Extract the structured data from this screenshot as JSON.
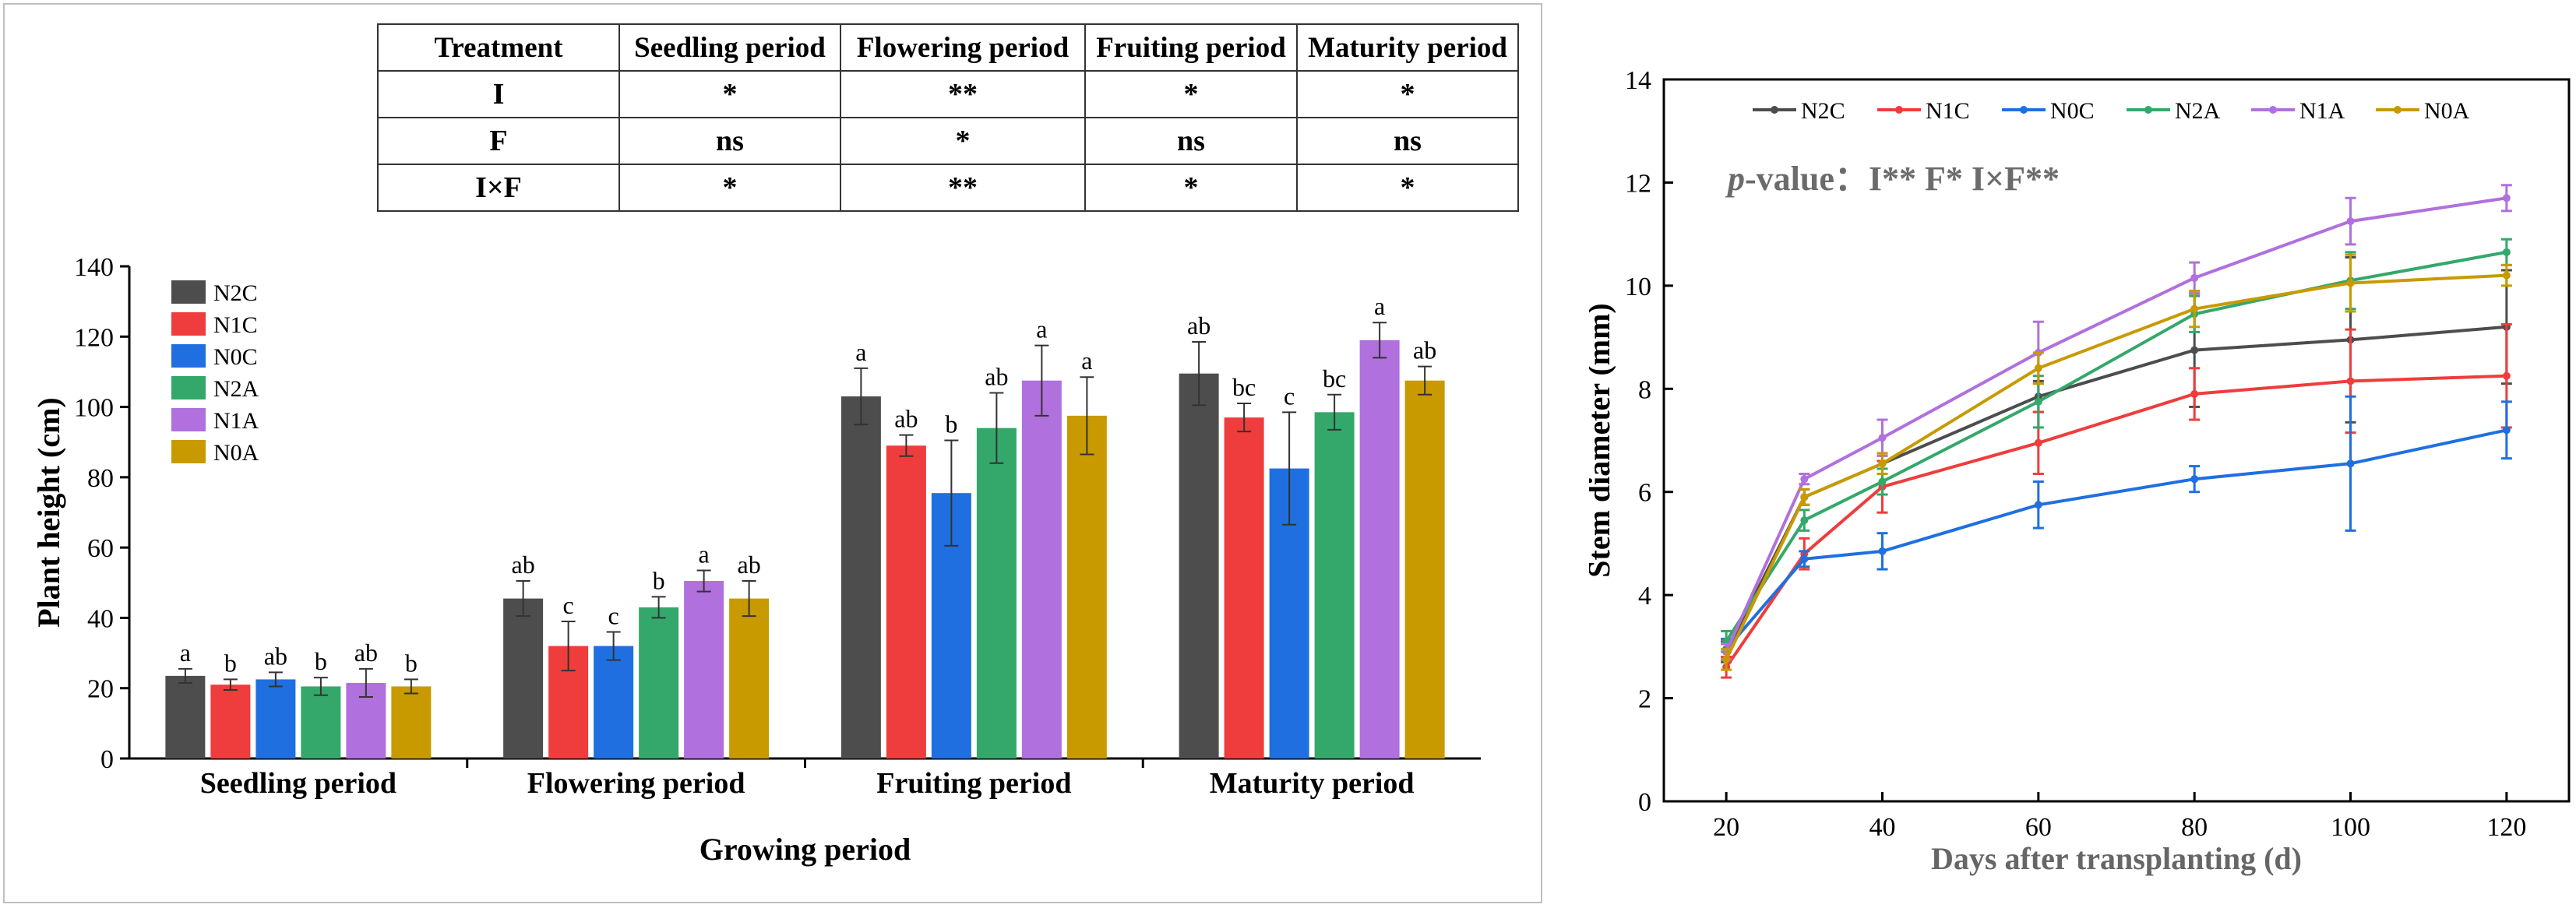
{
  "colors": {
    "N2C": "#4d4d4d",
    "N1C": "#ef3c3c",
    "N0C": "#1f6fe0",
    "N2A": "#33a86a",
    "N1A": "#b070dd",
    "N0A": "#c89a00"
  },
  "table": {
    "headers": [
      "Treatment",
      "Seedling period",
      "Flowering period",
      "Fruiting period",
      "Maturity period"
    ],
    "rows": [
      {
        "label": "I",
        "cells": [
          "*",
          "**",
          "*",
          "*"
        ]
      },
      {
        "label": "F",
        "cells": [
          "ns",
          "*",
          "ns",
          "ns"
        ]
      },
      {
        "label": "I×F",
        "cells": [
          "*",
          "**",
          "*",
          "*"
        ]
      }
    ]
  },
  "chart_data": [
    {
      "type": "bar",
      "title": "",
      "xlabel": "Growing period",
      "ylabel": "Plant height (cm)",
      "ylim": [
        0,
        140
      ],
      "yticks": [
        "0",
        "20",
        "40",
        "60",
        "80",
        "100",
        "120",
        "140"
      ],
      "legend_position": "top-left",
      "categories": [
        "Seedling period",
        "Flowering period",
        "Fruiting period",
        "Maturity period"
      ],
      "series": [
        {
          "name": "N2C",
          "values": [
            23.5,
            45.5,
            103,
            109.5
          ],
          "errors": [
            2,
            5,
            8,
            9
          ],
          "letters": [
            "a",
            "ab",
            "a",
            "ab"
          ]
        },
        {
          "name": "N1C",
          "values": [
            21,
            32,
            89,
            97
          ],
          "errors": [
            1.5,
            7,
            3,
            4
          ],
          "letters": [
            "b",
            "c",
            "ab",
            "bc"
          ]
        },
        {
          "name": "N0C",
          "values": [
            22.5,
            32,
            75.5,
            82.5
          ],
          "errors": [
            2,
            4,
            15,
            16
          ],
          "letters": [
            "ab",
            "c",
            "b",
            "c"
          ]
        },
        {
          "name": "N2A",
          "values": [
            20.5,
            43,
            94,
            98.5
          ],
          "errors": [
            2.5,
            3,
            10,
            5
          ],
          "letters": [
            "b",
            "b",
            "ab",
            "bc"
          ]
        },
        {
          "name": "N1A",
          "values": [
            21.5,
            50.5,
            107.5,
            119
          ],
          "errors": [
            4,
            3,
            10,
            5
          ],
          "letters": [
            "ab",
            "a",
            "a",
            "a"
          ]
        },
        {
          "name": "N0A",
          "values": [
            20.5,
            45.5,
            97.5,
            107.5
          ],
          "errors": [
            2,
            5,
            11,
            4
          ],
          "letters": [
            "b",
            "ab",
            "a",
            "ab"
          ]
        }
      ]
    },
    {
      "type": "line",
      "title": "",
      "xlabel": "Days after transplanting (d)",
      "ylabel": "Stem diameter (mm)",
      "xlim": [
        12,
        128
      ],
      "ylim": [
        0,
        14
      ],
      "xticks": [
        "20",
        "40",
        "60",
        "80",
        "100",
        "120"
      ],
      "yticks": [
        "0",
        "2",
        "4",
        "6",
        "8",
        "10",
        "12",
        "14"
      ],
      "annotation_prefix": "p",
      "annotation_text": "-value：I**  F*  I×F**",
      "legend_position": "top",
      "x": [
        20,
        30,
        40,
        60,
        80,
        100,
        120
      ],
      "series": [
        {
          "name": "N2C",
          "values": [
            2.9,
            5.9,
            6.55,
            7.85,
            8.75,
            8.95,
            9.2
          ],
          "errors": [
            0.2,
            0.15,
            0.2,
            0.3,
            1.1,
            1.6,
            1.1
          ]
        },
        {
          "name": "N1C",
          "values": [
            2.6,
            4.8,
            6.1,
            6.95,
            7.9,
            8.15,
            8.25
          ],
          "errors": [
            0.2,
            0.3,
            0.5,
            0.6,
            0.5,
            1.0,
            1.0
          ]
        },
        {
          "name": "N0C",
          "values": [
            2.95,
            4.7,
            4.85,
            5.75,
            6.25,
            6.55,
            7.2
          ],
          "errors": [
            0.2,
            0.15,
            0.35,
            0.45,
            0.25,
            1.3,
            0.55
          ]
        },
        {
          "name": "N2A",
          "values": [
            3.1,
            5.45,
            6.2,
            7.75,
            9.45,
            10.1,
            10.65
          ],
          "errors": [
            0.2,
            0.2,
            0.25,
            0.5,
            0.35,
            0.55,
            0.25
          ]
        },
        {
          "name": "N1A",
          "values": [
            2.9,
            6.25,
            7.05,
            8.7,
            10.15,
            11.25,
            11.7
          ],
          "errors": [
            0.15,
            0.1,
            0.35,
            0.6,
            0.3,
            0.45,
            0.25
          ]
        },
        {
          "name": "N0A",
          "values": [
            2.75,
            5.9,
            6.55,
            8.4,
            9.55,
            10.05,
            10.2
          ],
          "errors": [
            0.2,
            0.15,
            0.2,
            0.3,
            0.35,
            0.55,
            0.2
          ]
        }
      ]
    }
  ]
}
